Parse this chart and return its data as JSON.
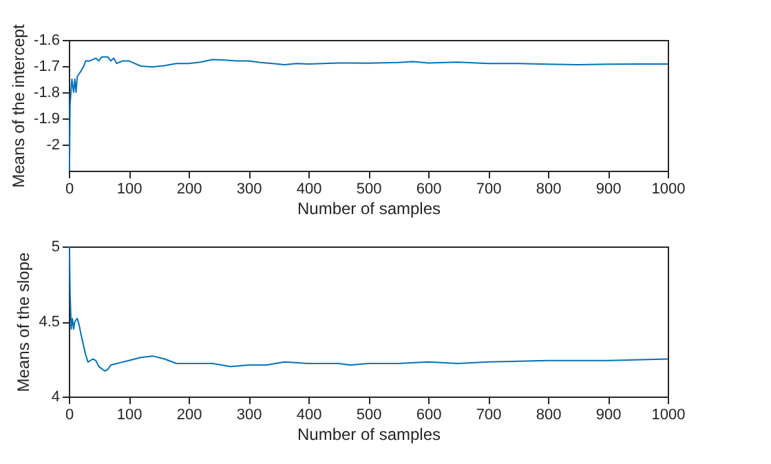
{
  "chart_data": [
    {
      "type": "line",
      "xlabel": "Number of samples",
      "ylabel": "Means of the intercept",
      "xlim": [
        0,
        1000
      ],
      "xticks": [
        0,
        100,
        200,
        300,
        400,
        500,
        600,
        700,
        800,
        900,
        1000
      ],
      "ylim": [
        -2.1,
        -1.6
      ],
      "yticks": [
        -2,
        -1.9,
        -1.8,
        -1.7,
        -1.6
      ],
      "grid": false,
      "marker": "none",
      "line_style": "solid",
      "series": [
        {
          "color": "#0072bd",
          "x": [
            1,
            2,
            5,
            8,
            10,
            12,
            14,
            20,
            25,
            28,
            35,
            45,
            50,
            55,
            65,
            70,
            75,
            80,
            90,
            100,
            110,
            120,
            140,
            160,
            180,
            200,
            220,
            240,
            260,
            280,
            300,
            320,
            340,
            360,
            380,
            400,
            450,
            500,
            550,
            575,
            600,
            650,
            700,
            750,
            800,
            850,
            900,
            950,
            1000
          ],
          "values": [
            -2.1,
            -1.85,
            -1.75,
            -1.8,
            -1.75,
            -1.8,
            -1.74,
            -1.72,
            -1.7,
            -1.68,
            -1.68,
            -1.67,
            -1.68,
            -1.665,
            -1.665,
            -1.68,
            -1.67,
            -1.69,
            -1.68,
            -1.68,
            -1.69,
            -1.7,
            -1.703,
            -1.698,
            -1.69,
            -1.69,
            -1.685,
            -1.675,
            -1.677,
            -1.68,
            -1.68,
            -1.686,
            -1.69,
            -1.695,
            -1.69,
            -1.692,
            -1.688,
            -1.689,
            -1.686,
            -1.683,
            -1.688,
            -1.685,
            -1.69,
            -1.69,
            -1.693,
            -1.695,
            -1.693,
            -1.692,
            -1.692
          ]
        }
      ]
    },
    {
      "type": "line",
      "xlabel": "Number of samples",
      "ylabel": "Means of the slope",
      "xlim": [
        0,
        1000
      ],
      "xticks": [
        0,
        100,
        200,
        300,
        400,
        500,
        600,
        700,
        800,
        900,
        1000
      ],
      "ylim": [
        4,
        5
      ],
      "yticks": [
        4,
        4.5,
        5
      ],
      "grid": false,
      "marker": "none",
      "line_style": "solid",
      "series": [
        {
          "color": "#0072bd",
          "x": [
            1,
            2,
            4,
            6,
            8,
            10,
            14,
            17,
            20,
            24,
            28,
            32,
            40,
            45,
            50,
            60,
            65,
            70,
            80,
            90,
            100,
            120,
            140,
            160,
            180,
            200,
            240,
            270,
            300,
            330,
            360,
            400,
            450,
            470,
            500,
            550,
            600,
            650,
            700,
            800,
            900,
            1000
          ],
          "values": [
            5.0,
            4.7,
            4.45,
            4.52,
            4.45,
            4.5,
            4.52,
            4.48,
            4.42,
            4.35,
            4.28,
            4.23,
            4.25,
            4.24,
            4.2,
            4.17,
            4.18,
            4.21,
            4.22,
            4.23,
            4.24,
            4.26,
            4.27,
            4.25,
            4.22,
            4.22,
            4.22,
            4.2,
            4.21,
            4.21,
            4.23,
            4.22,
            4.22,
            4.21,
            4.22,
            4.22,
            4.23,
            4.22,
            4.23,
            4.24,
            4.24,
            4.25
          ]
        }
      ]
    }
  ]
}
